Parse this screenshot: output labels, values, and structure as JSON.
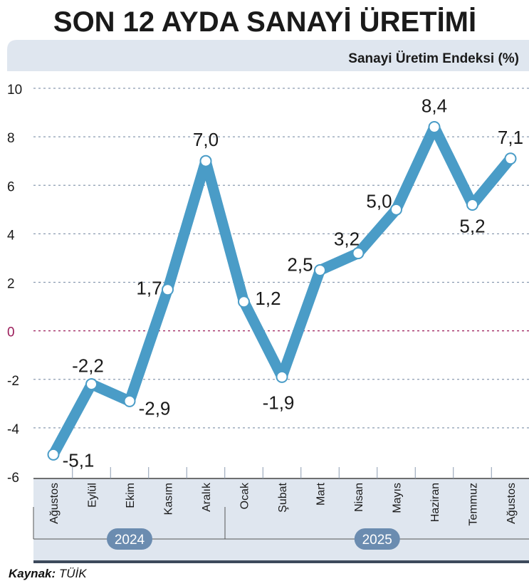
{
  "chart_data": {
    "type": "line",
    "title": "SON 12 AYDA SANAYİ ÜRETİMİ",
    "subtitle": "Sanayi Üretim Endeksi (%)",
    "categories": [
      "Ağustos",
      "Eylül",
      "Ekim",
      "Kasım",
      "Aralık",
      "Ocak",
      "Şubat",
      "Mart",
      "Nisan",
      "Mayıs",
      "Haziran",
      "Temmuz",
      "Ağustos"
    ],
    "values": [
      -5.1,
      -2.2,
      -2.9,
      1.7,
      7.0,
      1.2,
      -1.9,
      2.5,
      3.2,
      5.0,
      8.4,
      5.2,
      7.1
    ],
    "value_labels": [
      "-5,1",
      "-2,2",
      "-2,9",
      "1,7",
      "7,0",
      "1,2",
      "-1,9",
      "2,5",
      "3,2",
      "5,0",
      "8,4",
      "5,2",
      "7,1"
    ],
    "ylim": [
      -6,
      10
    ],
    "yticks": [
      10,
      8,
      6,
      4,
      2,
      0,
      -2,
      -4,
      -6
    ],
    "years": [
      {
        "label": "2024",
        "from": 0,
        "to": 4
      },
      {
        "label": "2025",
        "from": 5,
        "to": 12
      }
    ],
    "line_color": "#4a9cc7",
    "zero_line_color": "#9b1d5a",
    "grid": true
  },
  "source": {
    "label": "Kaynak:",
    "value": "TÜİK"
  }
}
